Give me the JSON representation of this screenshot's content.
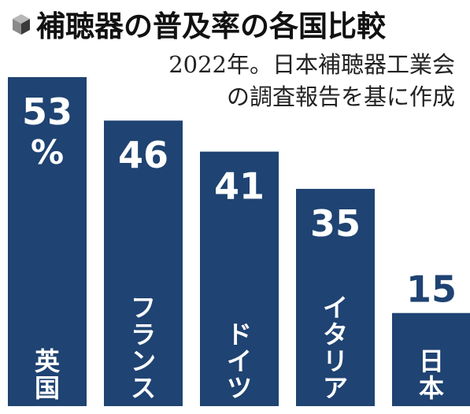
{
  "header": {
    "title": "補聴器の普及率の各国比較",
    "note_line1": "2022年。日本補聴器工業会",
    "note_line2": "の調査報告を基に作成"
  },
  "colors": {
    "bar": "#1f4372",
    "bar_text": "#ffffff",
    "value_on_white": "#1f4372",
    "title": "#111111",
    "icon_top": "#b8b8b8",
    "icon_left": "#8a8a8a",
    "icon_right": "#3a3a3a"
  },
  "chart_data": {
    "type": "bar",
    "title": "補聴器の普及率の各国比較",
    "subtitle": "2022年。日本補聴器工業会の調査報告を基に作成",
    "unit": "%",
    "categories": [
      "英国",
      "フランス",
      "ドイツ",
      "イタリア",
      "日本"
    ],
    "values": [
      53,
      46,
      41,
      35,
      15
    ],
    "value_labels": [
      "53",
      "46",
      "41",
      "35",
      "15"
    ],
    "ylim": [
      0,
      53
    ],
    "grid": false,
    "legend": "none"
  }
}
